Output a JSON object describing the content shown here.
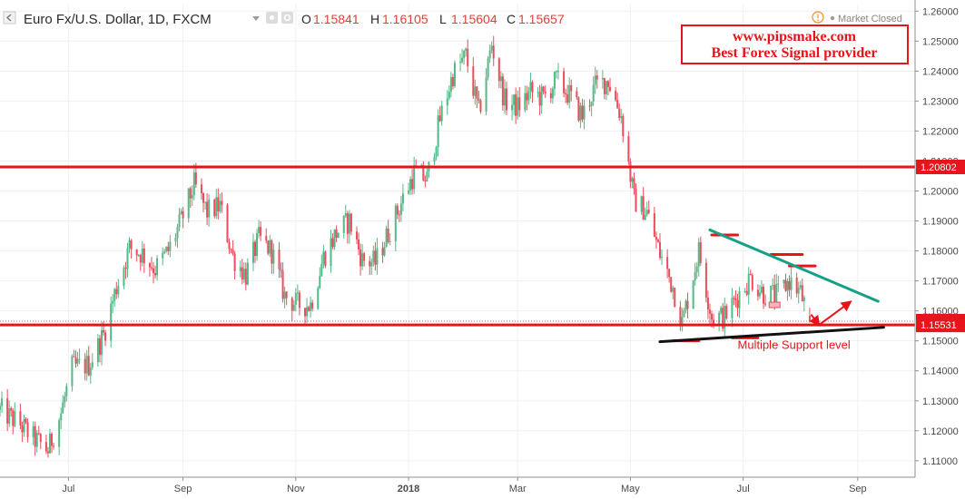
{
  "header": {
    "symbol": "Euro Fx/U.S. Dollar, 1D, FXCM",
    "ohlc": [
      {
        "key": "O",
        "value": "1.15841"
      },
      {
        "key": "H",
        "value": "1.16105"
      },
      {
        "key": "L",
        "value": "1.15604"
      },
      {
        "key": "C",
        "value": "1.15657"
      }
    ],
    "market_status": "Market Closed",
    "market_icon": "exclamation-circle-icon"
  },
  "promo": {
    "line1": "www.pipsmake.com",
    "line2": "Best Forex Signal provider"
  },
  "annotation": "Multiple Support level",
  "colors": {
    "up": "#53b987",
    "down": "#eb4d5c",
    "level": "#e8141b",
    "trend_down": "#16a085",
    "support": "#111111",
    "grid": "#edf1f6",
    "axis_text": "#4a4a4a"
  },
  "chart_data": {
    "type": "candlestick",
    "title": "Euro Fx/U.S. Dollar, 1D, FXCM",
    "x_ticks": [
      {
        "label": "Jul",
        "date": "2017-07-01"
      },
      {
        "label": "Sep",
        "date": "2017-09-01"
      },
      {
        "label": "Nov",
        "date": "2017-11-01"
      },
      {
        "label": "2018",
        "date": "2018-01-01"
      },
      {
        "label": "Mar",
        "date": "2018-03-01"
      },
      {
        "label": "May",
        "date": "2018-05-01"
      },
      {
        "label": "Jul",
        "date": "2018-07-01"
      },
      {
        "label": "Sep",
        "date": "2018-09-01"
      }
    ],
    "x_range": [
      "2017-05-25",
      "2018-10-02"
    ],
    "ylim": [
      1.1045,
      1.2622
    ],
    "y_ticks": [
      "1.26000",
      "1.25000",
      "1.24000",
      "1.23000",
      "1.22000",
      "1.21000",
      "1.20000",
      "1.19000",
      "1.18000",
      "1.17000",
      "1.16000",
      "1.15000",
      "1.14000",
      "1.13000",
      "1.12000",
      "1.11000"
    ],
    "grid": true,
    "price_badges": [
      {
        "label": "1.20802",
        "price": 1.20802
      },
      {
        "label": "1.15657",
        "price": 1.15657
      },
      {
        "label": "1.15531",
        "price": 1.15531
      }
    ],
    "last_close": 1.15657,
    "horizontal_levels": [
      1.20802,
      1.15531
    ],
    "path": [
      [
        "2017-05-25",
        1.127
      ],
      [
        "2017-06-05",
        1.122
      ],
      [
        "2017-06-12",
        1.1175
      ],
      [
        "2017-06-20",
        1.1135
      ],
      [
        "2017-06-27",
        1.126
      ],
      [
        "2017-07-03",
        1.141
      ],
      [
        "2017-07-12",
        1.142
      ],
      [
        "2017-07-20",
        1.152
      ],
      [
        "2017-07-27",
        1.168
      ],
      [
        "2017-08-03",
        1.181
      ],
      [
        "2017-08-10",
        1.179
      ],
      [
        "2017-08-17",
        1.174
      ],
      [
        "2017-08-24",
        1.18
      ],
      [
        "2017-08-31",
        1.19
      ],
      [
        "2017-09-07",
        1.202
      ],
      [
        "2017-09-14",
        1.193
      ],
      [
        "2017-09-21",
        1.195
      ],
      [
        "2017-09-28",
        1.178
      ],
      [
        "2017-10-05",
        1.172
      ],
      [
        "2017-10-12",
        1.184
      ],
      [
        "2017-10-19",
        1.18
      ],
      [
        "2017-10-26",
        1.165
      ],
      [
        "2017-11-02",
        1.162
      ],
      [
        "2017-11-09",
        1.162
      ],
      [
        "2017-11-16",
        1.178
      ],
      [
        "2017-11-23",
        1.186
      ],
      [
        "2017-11-30",
        1.19
      ],
      [
        "2017-12-07",
        1.177
      ],
      [
        "2017-12-14",
        1.176
      ],
      [
        "2017-12-21",
        1.186
      ],
      [
        "2017-12-28",
        1.196
      ],
      [
        "2018-01-04",
        1.206
      ],
      [
        "2018-01-11",
        1.204
      ],
      [
        "2018-01-18",
        1.224
      ],
      [
        "2018-01-25",
        1.239
      ],
      [
        "2018-02-01",
        1.245
      ],
      [
        "2018-02-08",
        1.226
      ],
      [
        "2018-02-15",
        1.249
      ],
      [
        "2018-02-22",
        1.23
      ],
      [
        "2018-03-01",
        1.228
      ],
      [
        "2018-03-08",
        1.233
      ],
      [
        "2018-03-15",
        1.231
      ],
      [
        "2018-03-22",
        1.237
      ],
      [
        "2018-03-29",
        1.232
      ],
      [
        "2018-04-05",
        1.225
      ],
      [
        "2018-04-12",
        1.235
      ],
      [
        "2018-04-19",
        1.237
      ],
      [
        "2018-04-26",
        1.225
      ],
      [
        "2018-05-03",
        1.197
      ],
      [
        "2018-05-10",
        1.193
      ],
      [
        "2018-05-17",
        1.179
      ],
      [
        "2018-05-24",
        1.168
      ],
      [
        "2018-05-29",
        1.156
      ],
      [
        "2018-06-07",
        1.18
      ],
      [
        "2018-06-14",
        1.158
      ],
      [
        "2018-06-21",
        1.158
      ],
      [
        "2018-06-28",
        1.165
      ],
      [
        "2018-07-05",
        1.171
      ],
      [
        "2018-07-12",
        1.166
      ],
      [
        "2018-07-19",
        1.165
      ],
      [
        "2018-07-26",
        1.17
      ],
      [
        "2018-08-01",
        1.166
      ],
      [
        "2018-08-06",
        1.1566
      ]
    ],
    "segments": [
      {
        "kind": "resistance-mark",
        "color": "level",
        "from": [
          "2018-06-14",
          1.1853
        ],
        "to": [
          "2018-06-28",
          1.1853
        ]
      },
      {
        "kind": "resistance-mark",
        "color": "level",
        "from": [
          "2018-07-16",
          1.1788
        ],
        "to": [
          "2018-08-02",
          1.1788
        ]
      },
      {
        "kind": "resistance-mark",
        "color": "level",
        "from": [
          "2018-07-26",
          1.175
        ],
        "to": [
          "2018-08-09",
          1.175
        ]
      },
      {
        "kind": "support-mark",
        "color": "level",
        "from": [
          "2018-05-24",
          1.15
        ],
        "to": [
          "2018-06-07",
          1.15
        ]
      },
      {
        "kind": "support-mark",
        "color": "level",
        "from": [
          "2018-06-25",
          1.151
        ],
        "to": [
          "2018-07-09",
          1.151
        ]
      },
      {
        "kind": "down-trendline",
        "color": "trend_down",
        "from": [
          "2018-06-13",
          1.187
        ],
        "to": [
          "2018-09-12",
          1.1632
        ]
      },
      {
        "kind": "support-trendline",
        "color": "support",
        "from": [
          "2018-05-17",
          1.1497
        ],
        "to": [
          "2018-09-15",
          1.1545
        ]
      },
      {
        "kind": "arrow-down",
        "color": "level",
        "from": [
          "2018-08-07",
          1.1586
        ],
        "to": [
          "2018-08-11",
          1.1553
        ]
      },
      {
        "kind": "arrow-up",
        "color": "level",
        "from": [
          "2018-08-11",
          1.1553
        ],
        "to": [
          "2018-08-28",
          1.163
        ]
      }
    ],
    "small_marker": {
      "date": "2018-07-18",
      "price": 1.162
    }
  }
}
